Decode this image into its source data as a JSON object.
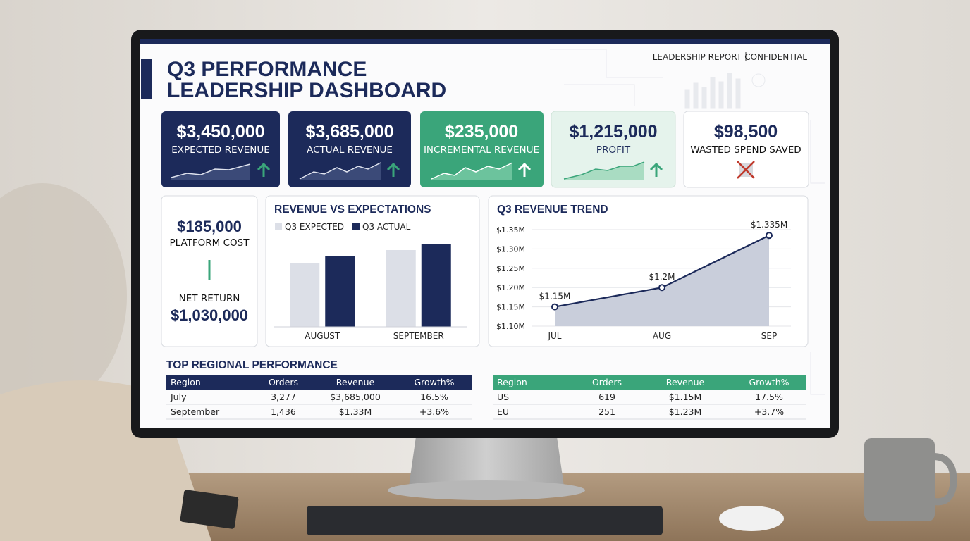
{
  "header": {
    "title_line1": "Q3 PERFORMANCE",
    "title_line2": "LEADERSHIP DASHBOARD",
    "report": "LEADERSHIP REPORT",
    "confidential": "CONFIDENTIAL"
  },
  "kpis": [
    {
      "value": "$3,450,000",
      "label": "EXPECTED REVENUE"
    },
    {
      "value": "$3,685,000",
      "label": "ACTUAL REVENUE"
    },
    {
      "value": "$235,000",
      "label": "INCREMENTAL REVENUE"
    },
    {
      "value": "$1,215,000",
      "label": "PROFIT"
    },
    {
      "value": "$98,500",
      "label": "WASTED SPEND SAVED"
    }
  ],
  "platform": {
    "cost": "$185,000",
    "cost_label": "PLATFORM COST",
    "return_label": "NET RETURN",
    "return": "$1,030,000"
  },
  "chart_data": [
    {
      "type": "bar",
      "title": "REVENUE VS EXPECTATIONS",
      "categories": [
        "AUGUST",
        "SEPTEMBER"
      ],
      "series": [
        {
          "name": "Q3 EXPECTED",
          "color": "#dcdfe7",
          "values": [
            91,
            109
          ]
        },
        {
          "name": "Q3 ACTUAL",
          "color": "#1c2a5a",
          "values": [
            100,
            118
          ]
        }
      ],
      "ylim": [
        0,
        130
      ]
    },
    {
      "type": "line",
      "title": "Q3 REVENUE TREND",
      "categories": [
        "JUL",
        "AUG",
        "SEP"
      ],
      "values": [
        1.15,
        1.2,
        1.335
      ],
      "value_labels": [
        "$1.15M",
        "$1.2M",
        "$1.335M"
      ],
      "color": "#1c2a5a",
      "area_color": "#c9cedb",
      "ylim": [
        1.1,
        1.35
      ],
      "yticks": [
        {
          "value": 1.1,
          "label": "$1.10M"
        },
        {
          "value": 1.15,
          "label": "$1.15M"
        },
        {
          "value": 1.2,
          "label": "$1.20M"
        },
        {
          "value": 1.25,
          "label": "$1.25M"
        },
        {
          "value": 1.3,
          "label": "$1.30M"
        },
        {
          "value": 1.35,
          "label": "$1.35M"
        }
      ],
      "grid": true
    }
  ],
  "section_title": "TOP REGIONAL PERFORMANCE",
  "tables": [
    {
      "columns": [
        "Region",
        "Orders",
        "Revenue",
        "Growth%"
      ],
      "rows": [
        [
          "July",
          "3,277",
          "$3,685,000",
          "16.5%"
        ],
        [
          "September",
          "1,436",
          "$1.33M",
          "+3.6%"
        ]
      ]
    },
    {
      "columns": [
        "Region",
        "Orders",
        "Revenue",
        "Growth%"
      ],
      "rows": [
        [
          "US",
          "619",
          "$1.15M",
          "17.5%"
        ],
        [
          "EU",
          "251",
          "$1.23M",
          "+3.7%"
        ]
      ]
    }
  ]
}
